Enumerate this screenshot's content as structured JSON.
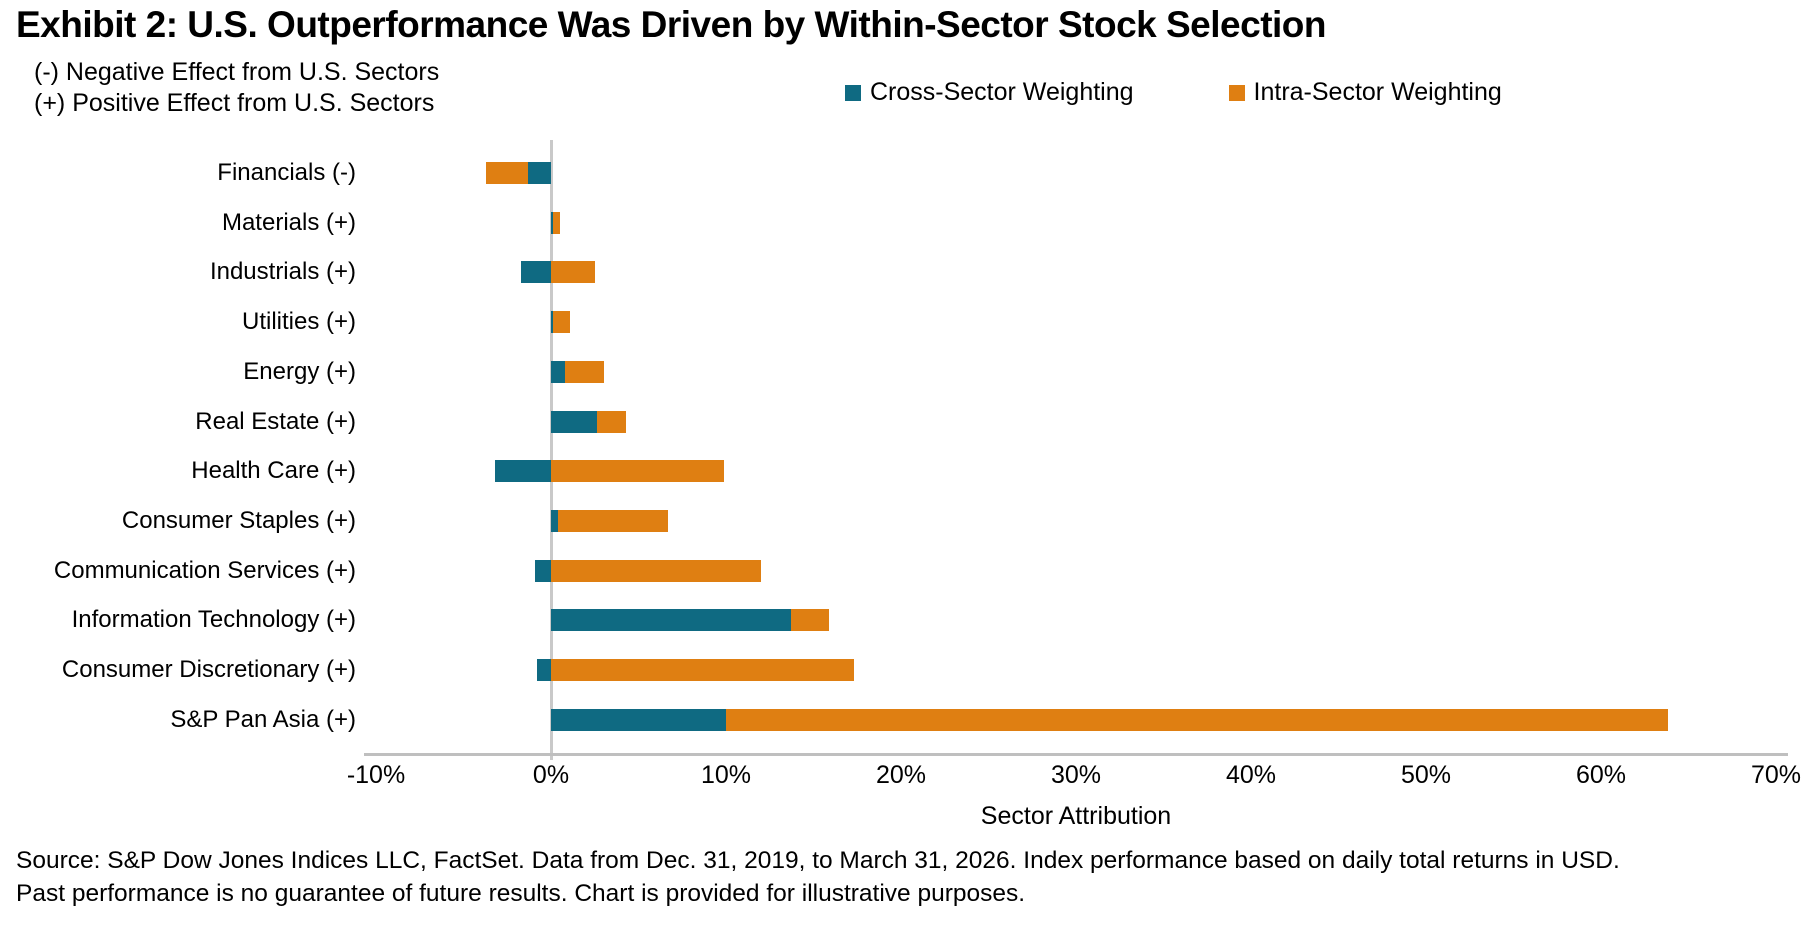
{
  "header": {
    "title": "Exhibit 2: U.S. Outperformance Was Driven by Within-Sector Stock Selection",
    "subtitle_line1": "(-) Negative Effect from U.S. Sectors",
    "subtitle_line2": "(+) Positive Effect from U.S. Sectors"
  },
  "legend": {
    "items": [
      {
        "label": "Cross-Sector Weighting",
        "color": "#0f6a82"
      },
      {
        "label": "Intra-Sector Weighting",
        "color": "#df7f12"
      }
    ]
  },
  "chart_data": {
    "type": "bar",
    "orientation": "horizontal-stacked",
    "title": "Exhibit 2: U.S. Outperformance Was Driven by Within-Sector Stock Selection",
    "xlabel": "Sector Attribution",
    "ylabel": "",
    "xlim": [
      -10,
      70
    ],
    "x_ticks": [
      "-10%",
      "0%",
      "10%",
      "20%",
      "30%",
      "40%",
      "50%",
      "60%",
      "70%"
    ],
    "grid": false,
    "legend_position": "top",
    "categories": [
      "Financials (-)",
      "Materials (+)",
      "Industrials (+)",
      "Utilities (+)",
      "Energy (+)",
      "Real Estate (+)",
      "Health Care (+)",
      "Consumer Staples (+)",
      "Communication Services (+)",
      "Information Technology (+)",
      "Consumer Discretionary (+)",
      "S&P Pan Asia (+)"
    ],
    "series": [
      {
        "name": "Cross-Sector Weighting",
        "color": "#0f6a82",
        "values": [
          -1.3,
          0.1,
          -1.7,
          0.1,
          0.8,
          2.6,
          -3.2,
          0.4,
          -0.9,
          13.7,
          -0.8,
          10.0
        ]
      },
      {
        "name": "Intra-Sector Weighting",
        "color": "#df7f12",
        "values": [
          -2.4,
          0.4,
          2.5,
          1.0,
          2.2,
          1.7,
          9.9,
          6.3,
          12.0,
          2.2,
          17.3,
          53.8
        ]
      }
    ]
  },
  "footer": {
    "source_line1": "Source: S&P Dow Jones Indices LLC, FactSet. Data from Dec. 31, 2019, to March 31, 2026. Index performance based on daily total returns in USD.",
    "source_line2": "Past performance is no guarantee of future results. Chart is provided for illustrative purposes."
  }
}
